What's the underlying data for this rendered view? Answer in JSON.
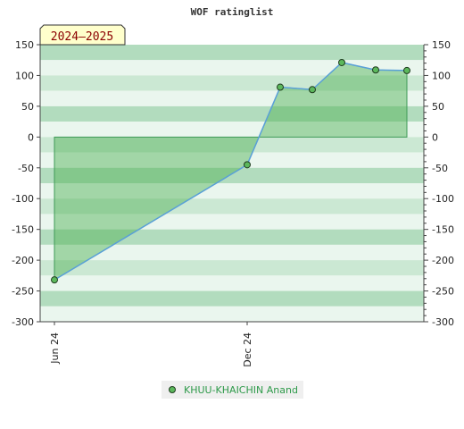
{
  "chart_data": {
    "type": "area",
    "title": "WOF ratinglist",
    "season_label": "2024–2025",
    "xlabel": "",
    "ylabel": "",
    "ylim": [
      -300,
      150
    ],
    "y_ticks": [
      150,
      100,
      50,
      0,
      -50,
      -100,
      -150,
      -200,
      -250,
      -300
    ],
    "x_ticks": [
      "Jun 24",
      "Dec 24"
    ],
    "legend_position": "bottom-center",
    "grid": true,
    "series": [
      {
        "name": "KHUU-KHAICHIN Anand",
        "x": [
          "Jun 24",
          "Dec 24",
          "Jan 25",
          "Feb 25",
          "Mar 25",
          "Apr 25",
          "May 25"
        ],
        "values": [
          -232,
          -45,
          81,
          77,
          121,
          109,
          108
        ]
      }
    ],
    "colors": {
      "line": "#5aa0d8",
      "area": "#4caf50",
      "marker_fill": "#5cb85c",
      "marker_stroke": "#1f3d1f",
      "band_dark": "#b2dcbe",
      "band_mid": "#cbe8d3",
      "band_light": "#eaf6ee",
      "legend_text": "#2e9a4a",
      "season_bg": "#ffffcc",
      "season_text": "#8b0000"
    }
  }
}
